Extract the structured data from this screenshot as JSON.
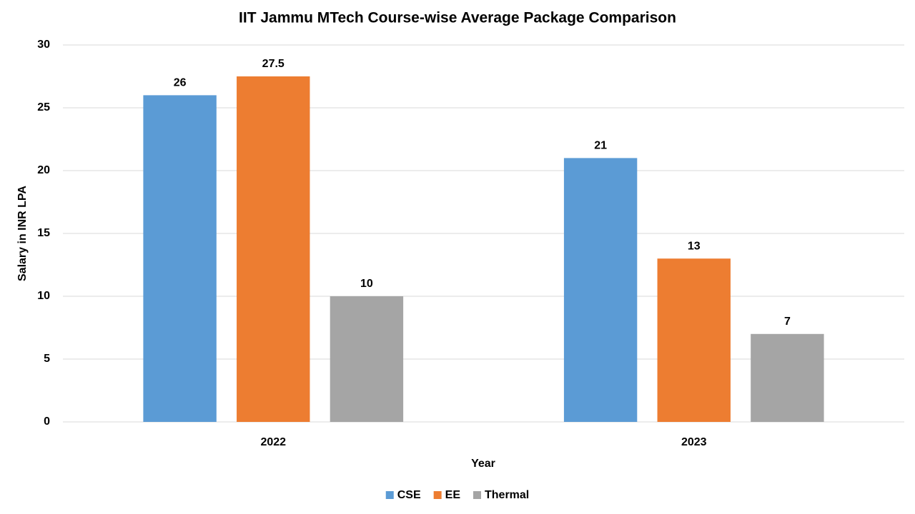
{
  "chart_data": {
    "type": "bar",
    "title": "IIT Jammu MTech Course-wise Average Package Comparison",
    "x_label": "Year",
    "y_label": "Salary in INR LPA",
    "categories": [
      "2022",
      "2023"
    ],
    "series": [
      {
        "name": "CSE",
        "color": "#5b9bd5",
        "values": [
          26,
          21
        ]
      },
      {
        "name": "EE",
        "color": "#ed7d31",
        "values": [
          27.5,
          13
        ]
      },
      {
        "name": "Thermal",
        "color": "#a5a5a5",
        "values": [
          10,
          7
        ]
      }
    ],
    "ylim": [
      0,
      30
    ],
    "yticks": [
      0,
      5,
      10,
      15,
      20,
      25,
      30
    ],
    "grid": true,
    "legend": "bottom"
  }
}
